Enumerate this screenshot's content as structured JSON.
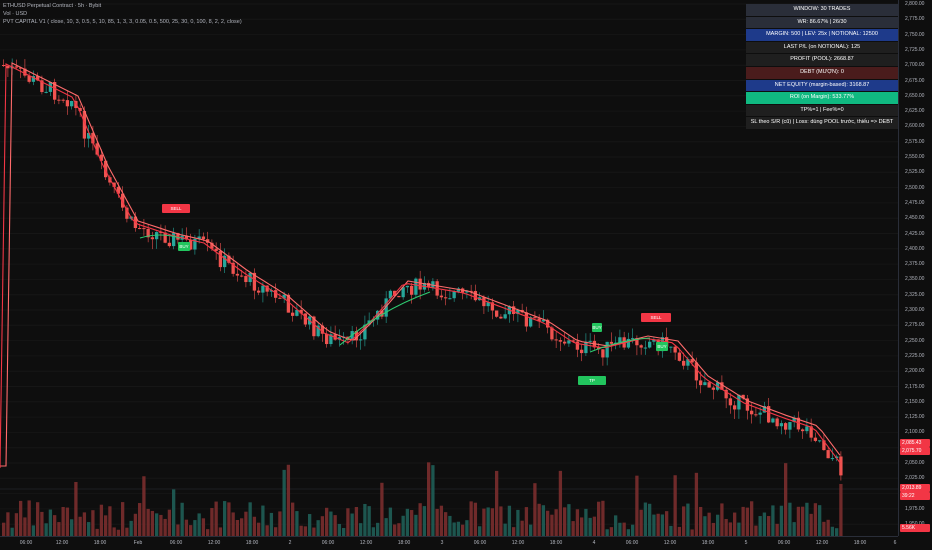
{
  "header": {
    "symbol_line": "ETHUSD Perpetual Contract · 5h · Bybit",
    "volume_line": "Vol · USD",
    "indicator_line": "PVT CAPITAL V1 ( close, 10, 3, 0.5, 5, 10, 85, 1, 3, 3, 0.05, 0.5, 500, 25, 30, 0, 100, 8, 2, 2, close)"
  },
  "stats_table": [
    {
      "text": "WINDOW: 30 TRADES",
      "bg": "#2a2e39"
    },
    {
      "text": "WR: 86.67% | 26/30",
      "bg": "#2a2e39"
    },
    {
      "text": "MARGIN: 500 | LEV: 25x | NOTIONAL: 12500",
      "bg": "#1e3a8a"
    },
    {
      "text": "LAST P/L (on NOTIONAL): 125",
      "bg": "#1f1f1f"
    },
    {
      "text": "PROFIT (POOL): 2668.87",
      "bg": "#1f1f1f"
    },
    {
      "text": "DEBT (MƯỢN): 0",
      "bg": "#4a1c1c"
    },
    {
      "text": "NET EQUITY (margin-based): 3168.87",
      "bg": "#1e3a8a"
    },
    {
      "text": "ROI (on Margin): 533.77%",
      "bg": "#10b981"
    },
    {
      "text": "TP%=1 | Fee%=0",
      "bg": "#1f1f1f"
    },
    {
      "text": "SL theo S/R (cũ) | Loss: dùng POOL trước, thiếu => DEBT",
      "bg": "#1f1f1f"
    }
  ],
  "price_axis": {
    "ticks": [
      "2,800.00",
      "2,775.00",
      "2,750.00",
      "2,725.00",
      "2,700.00",
      "2,675.00",
      "2,650.00",
      "2,625.00",
      "2,600.00",
      "2,575.00",
      "2,550.00",
      "2,525.00",
      "2,500.00",
      "2,475.00",
      "2,450.00",
      "2,425.00",
      "2,400.00",
      "2,375.00",
      "2,350.00",
      "2,325.00",
      "2,300.00",
      "2,275.00",
      "2,250.00",
      "2,225.00",
      "2,200.00",
      "2,175.00",
      "2,150.00",
      "2,125.00",
      "2,100.00",
      "2,075.00",
      "2,050.00",
      "2,025.00",
      "2,000.00",
      "1,975.00",
      "1,950.00"
    ],
    "tags": [
      {
        "text": "2,085.43",
        "color": "#f23645"
      },
      {
        "text": "2,075.70",
        "color": "#f23645"
      },
      {
        "text": "2,013.89",
        "color": "#f23645"
      },
      {
        "text": "39:22",
        "color": "#f23645"
      },
      {
        "text": "5.56K",
        "color": "#f23645"
      }
    ]
  },
  "time_axis": {
    "labels": [
      "06:00",
      "12:00",
      "18:00",
      "Feb",
      "06:00",
      "12:00",
      "18:00",
      "2",
      "06:00",
      "12:00",
      "18:00",
      "3",
      "06:00",
      "12:00",
      "18:00",
      "4",
      "06:00",
      "12:00",
      "18:00",
      "5",
      "06:00",
      "12:00",
      "18:00",
      "6"
    ]
  },
  "signals": {
    "sell_label": "SELL",
    "buy_label": "BUY",
    "tp_label": "TP",
    "sl_label": "SL HIT"
  },
  "colors": {
    "up": "#26a69a",
    "down": "#ef5350",
    "ma_fast": "#f23645",
    "ma_slow": "#ff6b6b",
    "ma_green": "#2ecc71",
    "bg": "#0e0e0e"
  }
}
